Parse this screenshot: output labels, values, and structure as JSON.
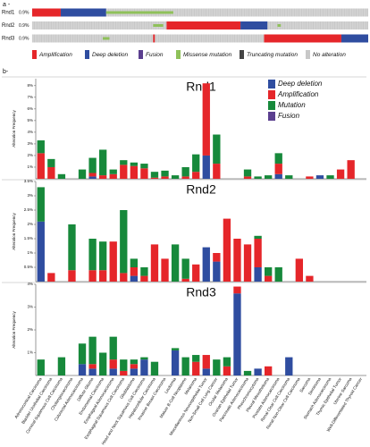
{
  "panel_labels": [
    "a -",
    "b-"
  ],
  "oncoprint": {
    "rows": [
      {
        "gene": "Rnd1",
        "percent": "0.9%"
      },
      {
        "gene": "Rnd2",
        "percent": "0.9%"
      },
      {
        "gene": "Rnd3",
        "percent": "0.9%"
      }
    ],
    "legend": [
      "Amplification",
      "Deep deletion",
      "Fusion",
      "Missense mutation",
      "Truncating mutation",
      "No alteration"
    ]
  },
  "chart_data": [
    {
      "type": "bar",
      "stacked": true,
      "title": "Rnd1",
      "y_label": "Alteration Frequency",
      "legend": "upper right",
      "ylim": [
        0,
        8.6
      ],
      "yticks": [
        {
          "value": 1,
          "label": "1%"
        },
        {
          "value": 2,
          "label": "2%"
        },
        {
          "value": 3,
          "label": "3%"
        },
        {
          "value": 4,
          "label": "4%"
        },
        {
          "value": 5,
          "label": "5%"
        },
        {
          "value": 6,
          "label": "6%"
        },
        {
          "value": 7,
          "label": "7%"
        },
        {
          "value": 8,
          "label": "8%"
        }
      ],
      "series": [
        {
          "name": "Deep deletion",
          "color": "#2f4da0",
          "values": [
            0,
            0,
            0,
            0,
            0,
            0.2,
            0,
            0,
            0,
            0,
            0,
            0,
            0,
            0,
            0,
            0,
            2.0,
            0,
            0,
            0,
            0,
            0,
            0,
            0.4,
            0,
            0,
            0,
            0.3,
            0,
            0,
            0,
            0
          ]
        },
        {
          "name": "Amplification",
          "color": "#e5262a",
          "values": [
            2.2,
            1.0,
            0,
            0,
            0,
            0.3,
            0.3,
            0.4,
            1.2,
            1.1,
            0.9,
            0.1,
            0.2,
            0,
            0.2,
            0.6,
            6.2,
            1.3,
            0,
            0,
            0.2,
            0,
            0,
            0.9,
            0,
            0,
            0.2,
            0,
            0,
            0.8,
            1.6,
            0
          ]
        },
        {
          "name": "Mutation",
          "color": "#17893b",
          "values": [
            1.1,
            0.7,
            0.4,
            0,
            0.8,
            1.3,
            2.2,
            0.4,
            0.4,
            0.3,
            0.4,
            0.5,
            0.5,
            0.3,
            0.8,
            1.5,
            0,
            2.5,
            0,
            0,
            0.6,
            0.2,
            0.3,
            0.9,
            0.3,
            0,
            0,
            0,
            0.3,
            0,
            0,
            0
          ]
        },
        {
          "name": "Fusion",
          "color": "#5b3f8f",
          "values": [
            0,
            0,
            0,
            0,
            0,
            0,
            0,
            0,
            0,
            0,
            0,
            0,
            0,
            0,
            0,
            0,
            0,
            0,
            0,
            0,
            0,
            0,
            0,
            0,
            0,
            0,
            0,
            0,
            0,
            0,
            0,
            0
          ]
        }
      ]
    },
    {
      "type": "bar",
      "stacked": true,
      "title": "Rnd2",
      "y_label": "Alteration Frequency",
      "ylim": [
        0,
        3.5
      ],
      "yticks": [
        {
          "value": 0.5,
          "label": "0.5%"
        },
        {
          "value": 1,
          "label": "1%"
        },
        {
          "value": 1.5,
          "label": "1.5%"
        },
        {
          "value": 2,
          "label": "2%"
        },
        {
          "value": 2.5,
          "label": "2.5%"
        },
        {
          "value": 3,
          "label": "3%"
        },
        {
          "value": 3.5,
          "label": "3.5%"
        }
      ],
      "series": [
        {
          "color": "#2f4da0",
          "values": [
            2.1,
            0,
            0,
            0,
            0,
            0,
            0,
            0,
            0,
            0.2,
            0,
            0,
            0,
            0,
            0,
            0,
            1.2,
            0.7,
            0,
            0,
            0,
            0.5,
            0,
            0,
            0,
            0,
            0,
            0,
            0,
            0,
            0,
            0
          ]
        },
        {
          "color": "#e5262a",
          "values": [
            0,
            0.3,
            0,
            0.4,
            0,
            0.4,
            0.4,
            1.4,
            0.3,
            0.3,
            0.2,
            1.3,
            0.8,
            0,
            0.1,
            0.6,
            0,
            0.3,
            2.2,
            1.5,
            1.3,
            1.0,
            0.2,
            0,
            0,
            0.8,
            0.2,
            0,
            0,
            0,
            0,
            0
          ]
        },
        {
          "color": "#17893b",
          "values": [
            1.2,
            0,
            0,
            1.6,
            0,
            1.1,
            1.0,
            0,
            2.2,
            0.3,
            0.3,
            0,
            0,
            1.3,
            0.7,
            0,
            0,
            0,
            0,
            0,
            0,
            0.1,
            0.3,
            0.5,
            0,
            0,
            0,
            0,
            0,
            0,
            0,
            0
          ]
        }
      ]
    },
    {
      "type": "bar",
      "stacked": true,
      "title": "Rnd3",
      "y_label": "Alteration Frequency",
      "ylim": [
        0,
        4
      ],
      "yticks": [
        {
          "value": 1,
          "label": "1%"
        },
        {
          "value": 2,
          "label": "2%"
        },
        {
          "value": 3,
          "label": "3%"
        },
        {
          "value": 4,
          "label": "4%"
        }
      ],
      "categories": [
        "Adrenocortical Carcinoma",
        "Bladder Urothelial Carcinoma",
        "Cervical Squamous Cell Carcinoma",
        "Cholangiocarcinoma",
        "Colorectal Adenocarcinoma",
        "Diffuse Glioma",
        "Endometrial Carcinoma",
        "Esophageal Adenocarcinoma",
        "Esophageal Squamous Cell Carcinoma",
        "Glioblastoma",
        "Head and Neck Squamous Cell Carcinoma",
        "Hepatocellular Carcinoma",
        "Invasive Breast Carcinoma",
        "Leukemia",
        "Mature B-Cell Neoplasms",
        "Melanoma",
        "Miscellaneous Neuroepithelial Tumor",
        "Non-Small Cell Lung Cancer",
        "Ocular Melanoma",
        "Ovarian Epithelial Tumor",
        "Pancreatic Adenocarcinoma",
        "Pheochromocytoma",
        "Pleural Mesothelioma",
        "Prostate Adenocarcinoma",
        "Renal Clear Cell Carcinoma",
        "Renal Non-Clear Cell Carcinoma",
        "Sarcoma",
        "Seminoma",
        "Stomach Adenocarcinoma",
        "Thymic Epithelial Tumor",
        "Uterine Sarcoma",
        "Well-Differentiated Thyroid Cancer"
      ],
      "series": [
        {
          "color": "#2f4da0",
          "values": [
            0,
            0,
            0,
            0,
            0.5,
            0.3,
            0,
            0.3,
            0,
            0.3,
            0.7,
            0,
            0,
            1.1,
            0,
            0,
            0.3,
            0,
            0,
            3.6,
            0,
            0.3,
            0,
            0,
            0.8,
            0,
            0,
            0,
            0,
            0,
            0,
            0
          ]
        },
        {
          "color": "#e5262a",
          "values": [
            0,
            0,
            0,
            0,
            0,
            0.2,
            0,
            0.4,
            0.2,
            0.2,
            0,
            0,
            0,
            0,
            0,
            0.6,
            0.6,
            0,
            0.4,
            0.3,
            0,
            0,
            0.4,
            0,
            0,
            0,
            0,
            0,
            0,
            0,
            0,
            0
          ]
        },
        {
          "color": "#17893b",
          "values": [
            0.7,
            0,
            0.8,
            0,
            0.9,
            1.2,
            1.0,
            1.0,
            0.5,
            0.2,
            0.1,
            0.6,
            0,
            0.1,
            0.8,
            0.3,
            0,
            0.7,
            0.4,
            0,
            0.2,
            0,
            0,
            0,
            0,
            0,
            0,
            0,
            0,
            0,
            0,
            0
          ]
        }
      ]
    }
  ]
}
